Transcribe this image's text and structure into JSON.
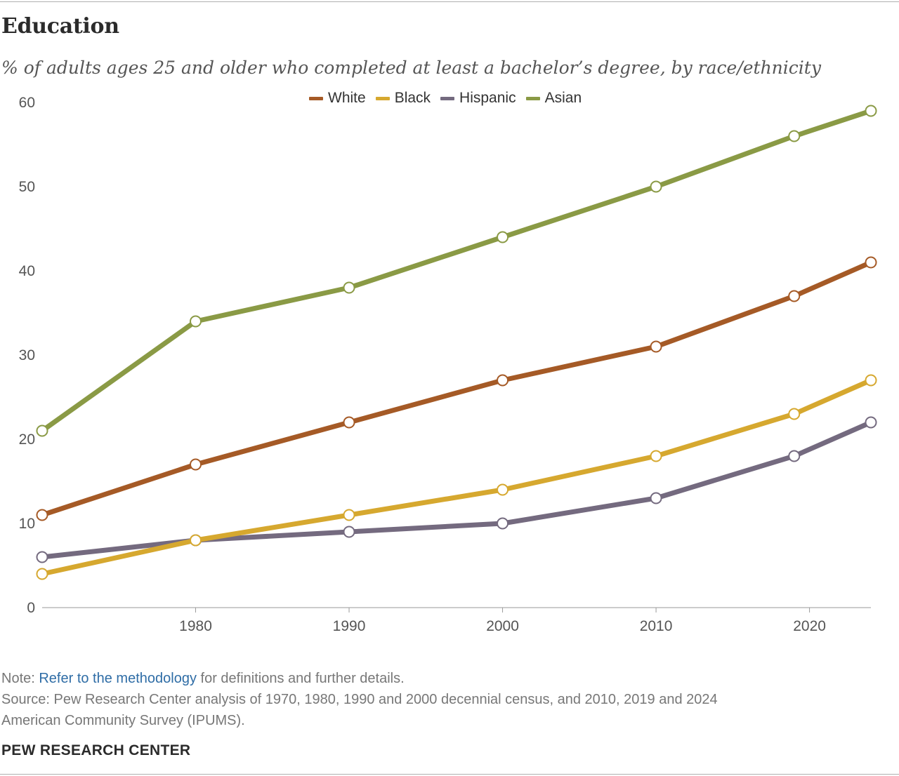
{
  "header": {
    "title": "Education",
    "subtitle": "% of adults ages 25 and older who completed at least a bachelor’s degree, by race/ethnicity"
  },
  "footer": {
    "note_prefix": "Note: ",
    "note_link": "Refer to the methodology",
    "note_suffix": " for definitions and further details.",
    "source_line1": "Source: Pew Research Center analysis of 1970, 1980, 1990 and 2000 decennial census, and 2010, 2019 and 2024",
    "source_line2": "American Community Survey (IPUMS).",
    "brand": "PEW RESEARCH CENTER"
  },
  "chart_data": {
    "type": "line",
    "title": "Education",
    "subtitle": "% of adults ages 25 and older who completed at least a bachelor’s degree, by race/ethnicity",
    "x": [
      1970,
      1980,
      1990,
      2000,
      2010,
      2019,
      2024
    ],
    "xticks": [
      1980,
      1990,
      2000,
      2010,
      2020
    ],
    "xlim": [
      1970,
      2024
    ],
    "ylim": [
      0,
      60
    ],
    "yticks": [
      0,
      10,
      20,
      30,
      40,
      50,
      60
    ],
    "grid": false,
    "legend": "top-center",
    "series": [
      {
        "name": "White",
        "color": "#a55a26",
        "values": [
          11,
          17,
          22,
          27,
          31,
          37,
          41
        ]
      },
      {
        "name": "Black",
        "color": "#d6a82f",
        "values": [
          4,
          8,
          11,
          14,
          18,
          23,
          27
        ]
      },
      {
        "name": "Hispanic",
        "color": "#746a7f",
        "values": [
          6,
          8,
          9,
          10,
          13,
          18,
          22
        ]
      },
      {
        "name": "Asian",
        "color": "#8a9a45",
        "values": [
          21,
          34,
          38,
          44,
          50,
          56,
          59
        ]
      }
    ]
  }
}
